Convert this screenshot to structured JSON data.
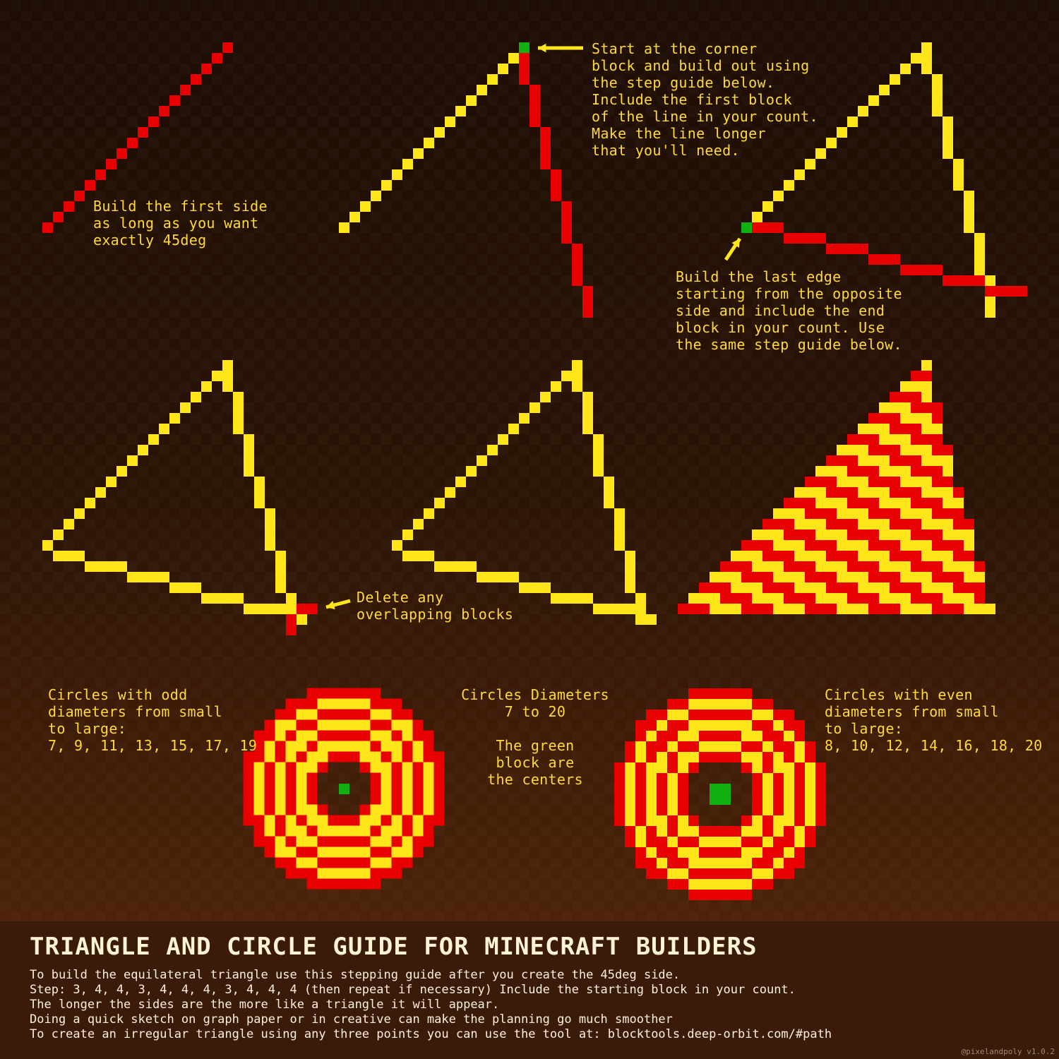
{
  "colors": {
    "red": "#e80000",
    "yellow": "#ffe61a",
    "green": "#10b010",
    "arrow": "#ffe61a",
    "text": "#ffd83a",
    "footer_text": "#fff3d6"
  },
  "annotations": {
    "first_side": "Build the first side\nas long as you want\nexactly 45deg",
    "corner": "Start at the corner\nblock and build out using\nthe step guide below.\nInclude the first block\nof the line in your count.\nMake the line longer\nthat you'll need.",
    "last_edge": "Build the last edge\nstarting from the opposite\nside and include the end\nblock in your count. Use\nthe same step guide below.",
    "delete": "Delete any\noverlapping blocks",
    "odd_circles": "Circles with odd\ndiameters from small\nto large:\n7, 9, 11, 13, 15, 17, 19",
    "diameters": "Circles Diameters\n7 to 20\n\nThe green\nblock are\nthe centers",
    "even_circles": "Circles with even\ndiameters from small\nto large:\n8, 10, 12, 14, 16, 18, 20"
  },
  "circles": {
    "odd_diameters": [
      7,
      9,
      11,
      13,
      15,
      17,
      19
    ],
    "even_diameters": [
      8,
      10,
      12,
      14,
      16,
      18,
      20
    ]
  },
  "footer": {
    "title": "TRIANGLE AND CIRCLE GUIDE FOR MINECRAFT BUILDERS",
    "lines": [
      "To build the equilateral triangle use this stepping guide after you create the 45deg side.",
      "Step: 3, 4, 4, 3, 4, 4, 4, 3, 4, 4, 4 (then repeat if necessary) Include the starting block in your count.",
      "The longer the sides are the more like a triangle it will appear.",
      "Doing a quick sketch on graph paper or in creative can make the planning go much smoother",
      "To create an irregular triangle using any three points you can use the tool at: blocktools.deep-orbit.com/#path"
    ],
    "credit": "@pixelandpoly v1.0.2"
  }
}
